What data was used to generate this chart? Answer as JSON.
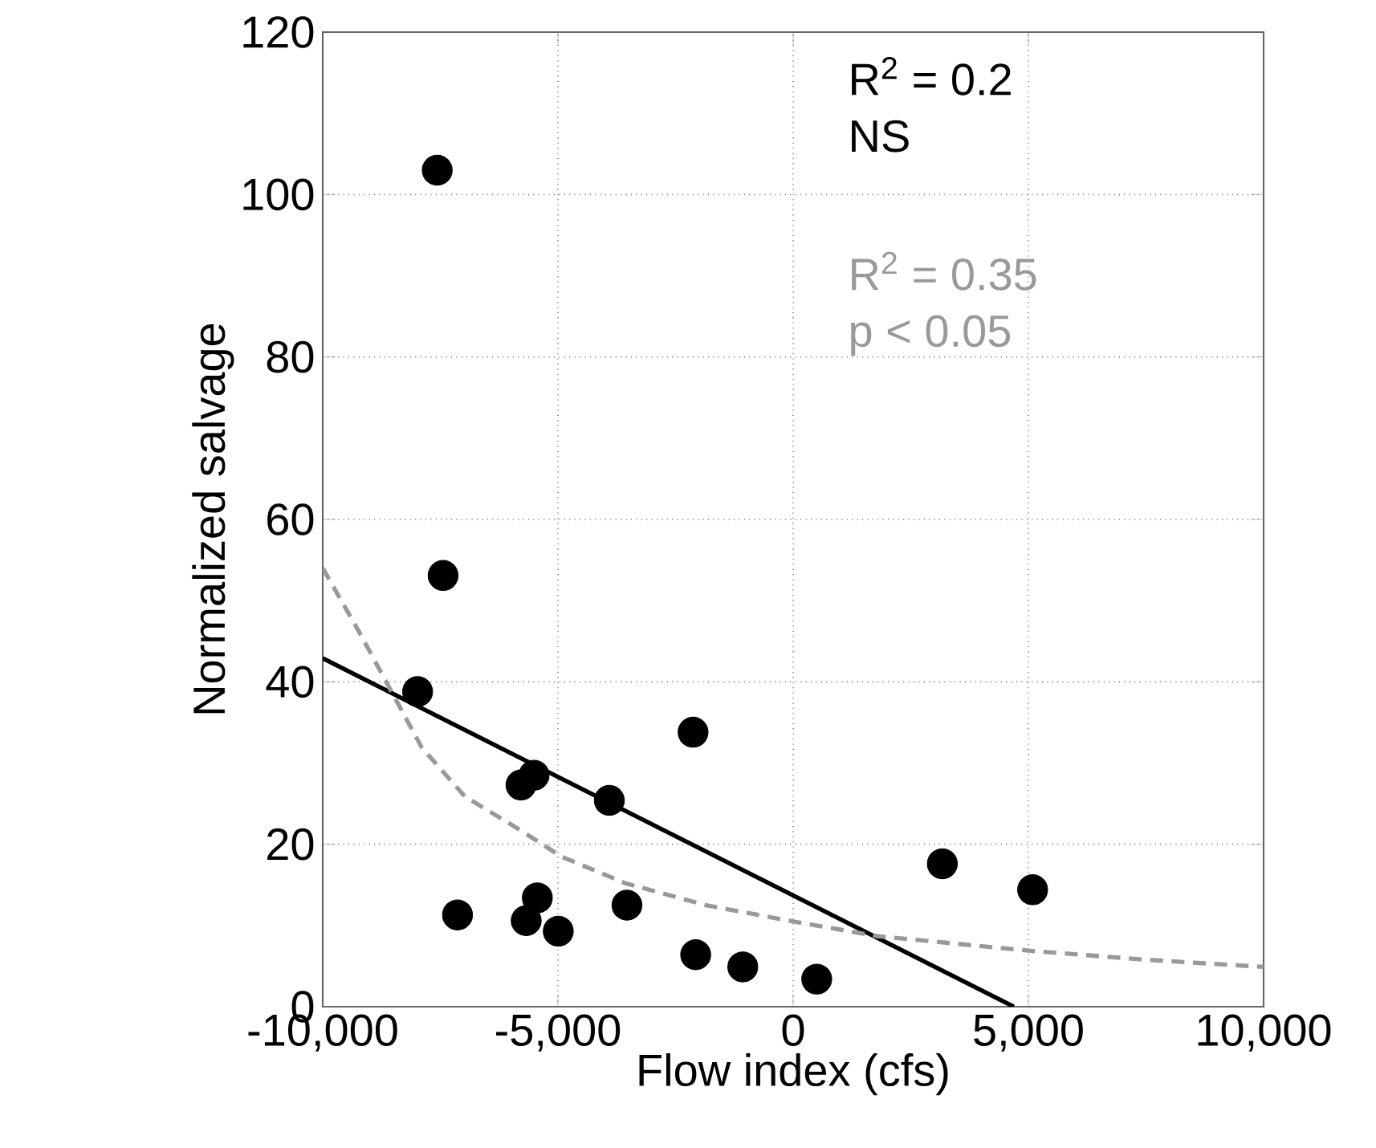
{
  "chart_data": {
    "type": "scatter",
    "xlabel": "Flow index (cfs)",
    "ylabel": "Normalized salvage",
    "xlim": [
      -10000,
      10000
    ],
    "ylim": [
      0,
      120
    ],
    "xticks": [
      {
        "value": -10000,
        "label": "-10,000"
      },
      {
        "value": -5000,
        "label": "-5,000"
      },
      {
        "value": 0,
        "label": "0"
      },
      {
        "value": 5000,
        "label": "5,000"
      },
      {
        "value": 10000,
        "label": "10,000"
      }
    ],
    "yticks": [
      0,
      20,
      40,
      60,
      80,
      100,
      120
    ],
    "grid": true,
    "marker": "circle",
    "series": [
      {
        "color": "#000000",
        "x": [
          -7566,
          -7441,
          -7983,
          -2128,
          -5508,
          -5786,
          -3908,
          3171,
          5090,
          -7135,
          -5438,
          -5675,
          -4993,
          -3533,
          -2072,
          -1071,
          501
        ],
        "values": [
          103.0,
          53.1,
          38.8,
          33.8,
          28.5,
          27.3,
          25.4,
          17.6,
          14.4,
          11.3,
          13.4,
          10.6,
          9.3,
          12.5,
          6.4,
          4.9,
          3.4
        ]
      },
      {
        "type": "line",
        "color": "#000000",
        "line_style": "solid",
        "marker": "none",
        "x": [
          -10000,
          4690
        ],
        "values": [
          42.9,
          0
        ]
      },
      {
        "type": "line",
        "color": "#999999",
        "line_style": "dashed",
        "marker": "none",
        "x": [
          -10000,
          -9260,
          -8576,
          -7893,
          -6982,
          -5843,
          -4932,
          -3565,
          -1856,
          0,
          1775,
          5000,
          7463,
          10000
        ],
        "values": [
          54.0,
          46.5,
          39.2,
          31.9,
          25.9,
          21.9,
          18.5,
          15.2,
          12.5,
          10.5,
          8.7,
          6.9,
          5.8,
          4.9
        ]
      }
    ],
    "annotations": [
      "R$^{2}$ = 0.2",
      "NS",
      "R$^{2}$ = 0.35",
      "p < 0.05"
    ]
  }
}
